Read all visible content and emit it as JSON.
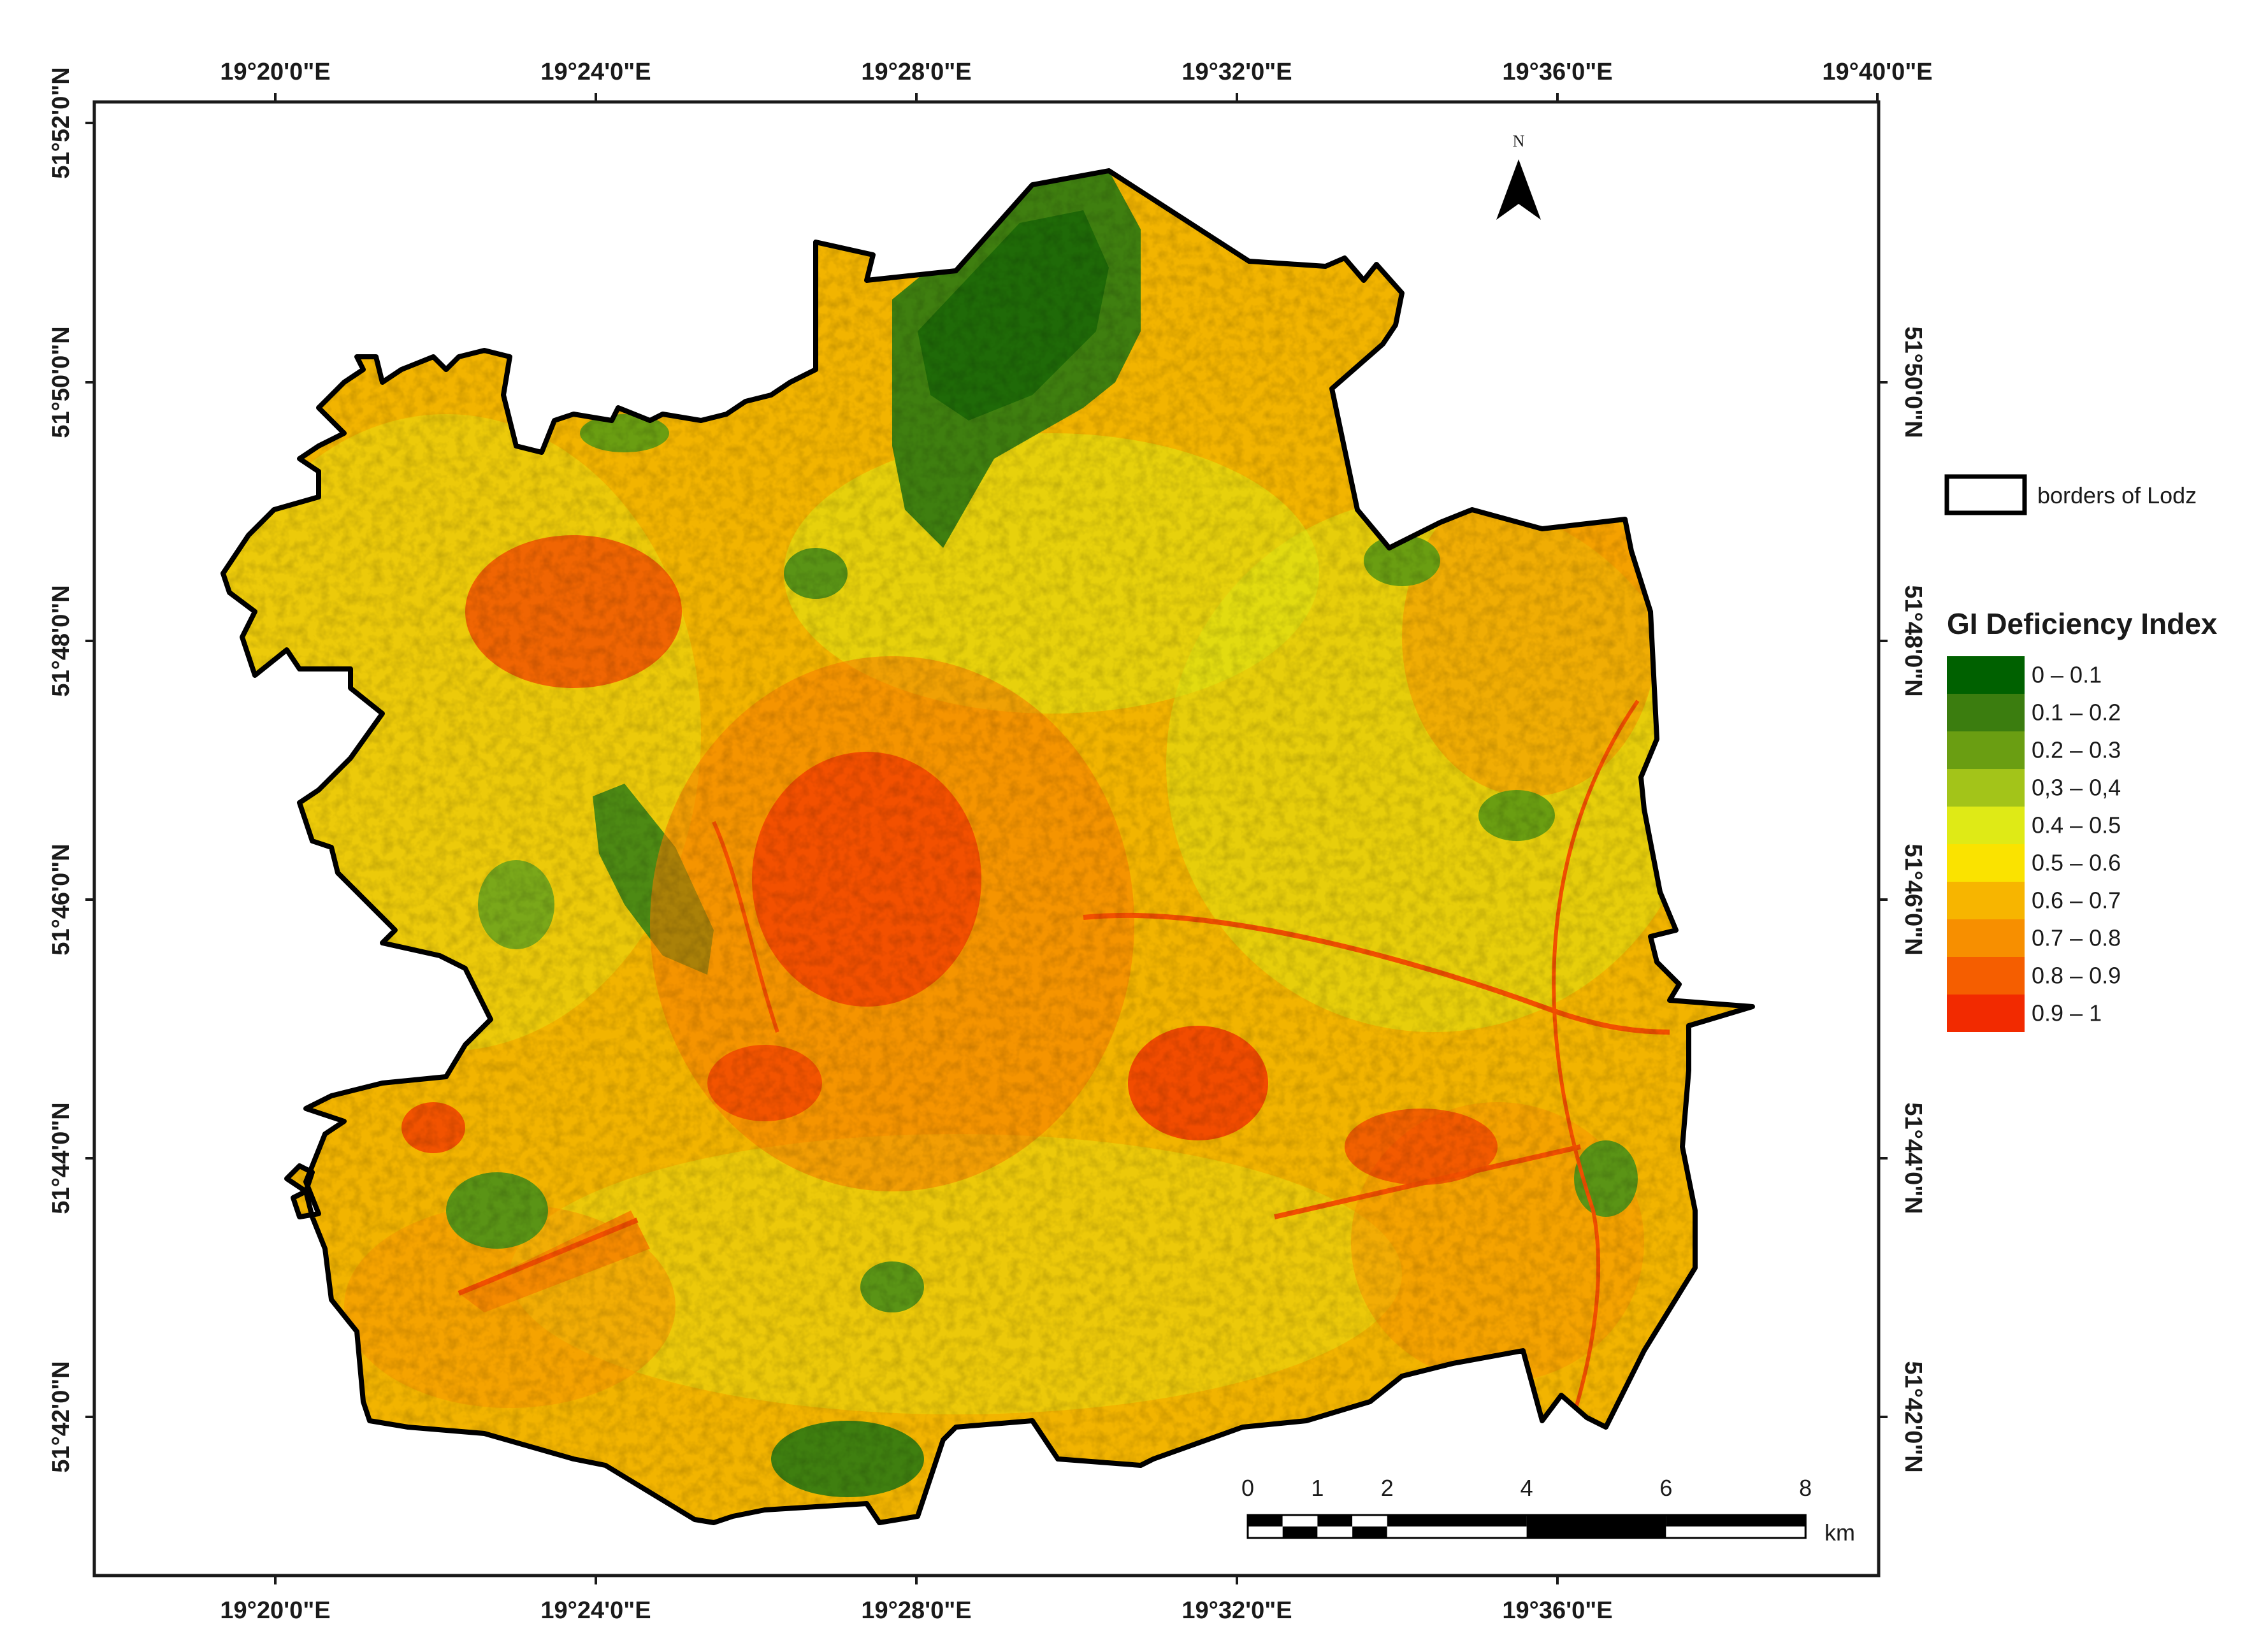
{
  "map": {
    "lon_labels": [
      "19°20'0\"E",
      "19°24'0\"E",
      "19°28'0\"E",
      "19°32'0\"E",
      "19°36'0\"E",
      "19°40'0\"E"
    ],
    "lon_labels_bottom": [
      "19°20'0\"E",
      "19°24'0\"E",
      "19°28'0\"E",
      "19°32'0\"E",
      "19°36'0\"E"
    ],
    "lat_labels": [
      "51°52'0\"N",
      "51°50'0\"N",
      "51°48'0\"N",
      "51°46'0\"N",
      "51°44'0\"N",
      "51°42'0\"N"
    ],
    "lat_labels_right": [
      "51°50'0\"N",
      "51°48'0\"N",
      "51°46'0\"N",
      "51°44'0\"N",
      "51°42'0\"N"
    ],
    "north_label": "N"
  },
  "legend": {
    "border_label": "borders of Lodz",
    "title": "GI Deficiency Index",
    "classes": [
      {
        "label": "0 – 0.1",
        "color": "#006100"
      },
      {
        "label": "0.1 – 0.2",
        "color": "#3b7d0f"
      },
      {
        "label": "0.2 – 0.3",
        "color": "#6a9e12"
      },
      {
        "label": "0,3 – 0,4",
        "color": "#a3c419"
      },
      {
        "label": "0.4 – 0.5",
        "color": "#dfea16"
      },
      {
        "label": "0.5 – 0.6",
        "color": "#fae300"
      },
      {
        "label": "0.6 – 0.7",
        "color": "#f7b500"
      },
      {
        "label": "0.7 – 0.8",
        "color": "#f78f00"
      },
      {
        "label": "0.8 – 0.9",
        "color": "#f55e00"
      },
      {
        "label": "0.9 – 1",
        "color": "#f22a00"
      }
    ]
  },
  "scalebar": {
    "ticks": [
      "0",
      "1",
      "2",
      "4",
      "6",
      "8"
    ],
    "unit": "km"
  }
}
